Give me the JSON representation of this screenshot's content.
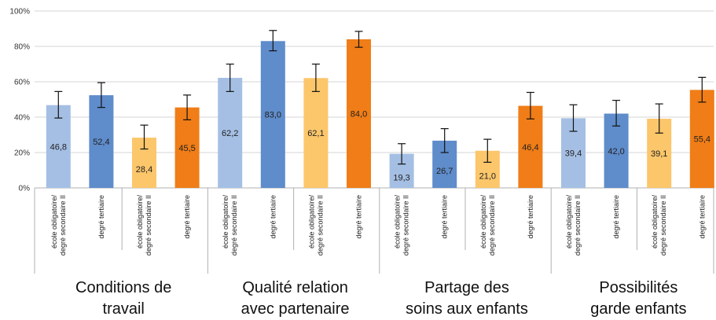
{
  "chart_data": {
    "type": "bar",
    "ylim": [
      0,
      100
    ],
    "yticks": [
      "0%",
      "20%",
      "40%",
      "60%",
      "80%",
      "100%"
    ],
    "grid": true,
    "groups": [
      {
        "label": [
          "Conditions de",
          "travail"
        ],
        "bars": [
          {
            "category": [
              "école obligatoire/",
              "degré secondaire II"
            ],
            "value": 46.8,
            "label": "46,8",
            "err_low": 39.5,
            "err_high": 54.5,
            "color": "#a5bfe4"
          },
          {
            "category": [
              "degré tertiaire"
            ],
            "value": 52.4,
            "label": "52,4",
            "err_low": 45.5,
            "err_high": 59.5,
            "color": "#5f8ccb"
          },
          {
            "category": [
              "école obligatoire/",
              "degré secondaire II"
            ],
            "value": 28.4,
            "label": "28,4",
            "err_low": 22.0,
            "err_high": 35.5,
            "color": "#fcc66b"
          },
          {
            "category": [
              "degré tertiaire"
            ],
            "value": 45.5,
            "label": "45,5",
            "err_low": 38.5,
            "err_high": 52.5,
            "color": "#f07d17"
          }
        ]
      },
      {
        "label": [
          "Qualité relation",
          "avec partenaire"
        ],
        "bars": [
          {
            "category": [
              "école obligatoire/",
              "degré secondaire II"
            ],
            "value": 62.2,
            "label": "62,2",
            "err_low": 54.5,
            "err_high": 70.0,
            "color": "#a5bfe4"
          },
          {
            "category": [
              "degré tertiaire"
            ],
            "value": 83.0,
            "label": "83,0",
            "err_low": 77.5,
            "err_high": 89.0,
            "color": "#5f8ccb"
          },
          {
            "category": [
              "école obligatoire/",
              "degré secondaire II"
            ],
            "value": 62.1,
            "label": "62,1",
            "err_low": 54.5,
            "err_high": 70.0,
            "color": "#fcc66b"
          },
          {
            "category": [
              "degré tertiaire"
            ],
            "value": 84.0,
            "label": "84,0",
            "err_low": 79.5,
            "err_high": 88.5,
            "color": "#f07d17"
          }
        ]
      },
      {
        "label": [
          "Partage des",
          "soins aux enfants"
        ],
        "bars": [
          {
            "category": [
              "école obligatoire/",
              "degré secondaire II"
            ],
            "value": 19.3,
            "label": "19,3",
            "err_low": 13.5,
            "err_high": 25.0,
            "color": "#a5bfe4"
          },
          {
            "category": [
              "degré tertiaire"
            ],
            "value": 26.7,
            "label": "26,7",
            "err_low": 20.0,
            "err_high": 33.5,
            "color": "#5f8ccb"
          },
          {
            "category": [
              "école obligatoire/",
              "degré secondaire II"
            ],
            "value": 21.0,
            "label": "21,0",
            "err_low": 14.5,
            "err_high": 27.5,
            "color": "#fcc66b"
          },
          {
            "category": [
              "degré tertiaire"
            ],
            "value": 46.4,
            "label": "46,4",
            "err_low": 39.0,
            "err_high": 54.0,
            "color": "#f07d17"
          }
        ]
      },
      {
        "label": [
          "Possibilités",
          "garde enfants"
        ],
        "bars": [
          {
            "category": [
              "école obligatoire/",
              "degré secondaire II"
            ],
            "value": 39.4,
            "label": "39,4",
            "err_low": 32.0,
            "err_high": 47.0,
            "color": "#a5bfe4"
          },
          {
            "category": [
              "degré tertiaire"
            ],
            "value": 42.0,
            "label": "42,0",
            "err_low": 35.0,
            "err_high": 49.5,
            "color": "#5f8ccb"
          },
          {
            "category": [
              "école obligatoire/",
              "degré secondaire II"
            ],
            "value": 39.1,
            "label": "39,1",
            "err_low": 31.0,
            "err_high": 47.5,
            "color": "#fcc66b"
          },
          {
            "category": [
              "degré tertiaire"
            ],
            "value": 55.4,
            "label": "55,4",
            "err_low": 48.5,
            "err_high": 62.5,
            "color": "#f07d17"
          }
        ]
      }
    ]
  }
}
